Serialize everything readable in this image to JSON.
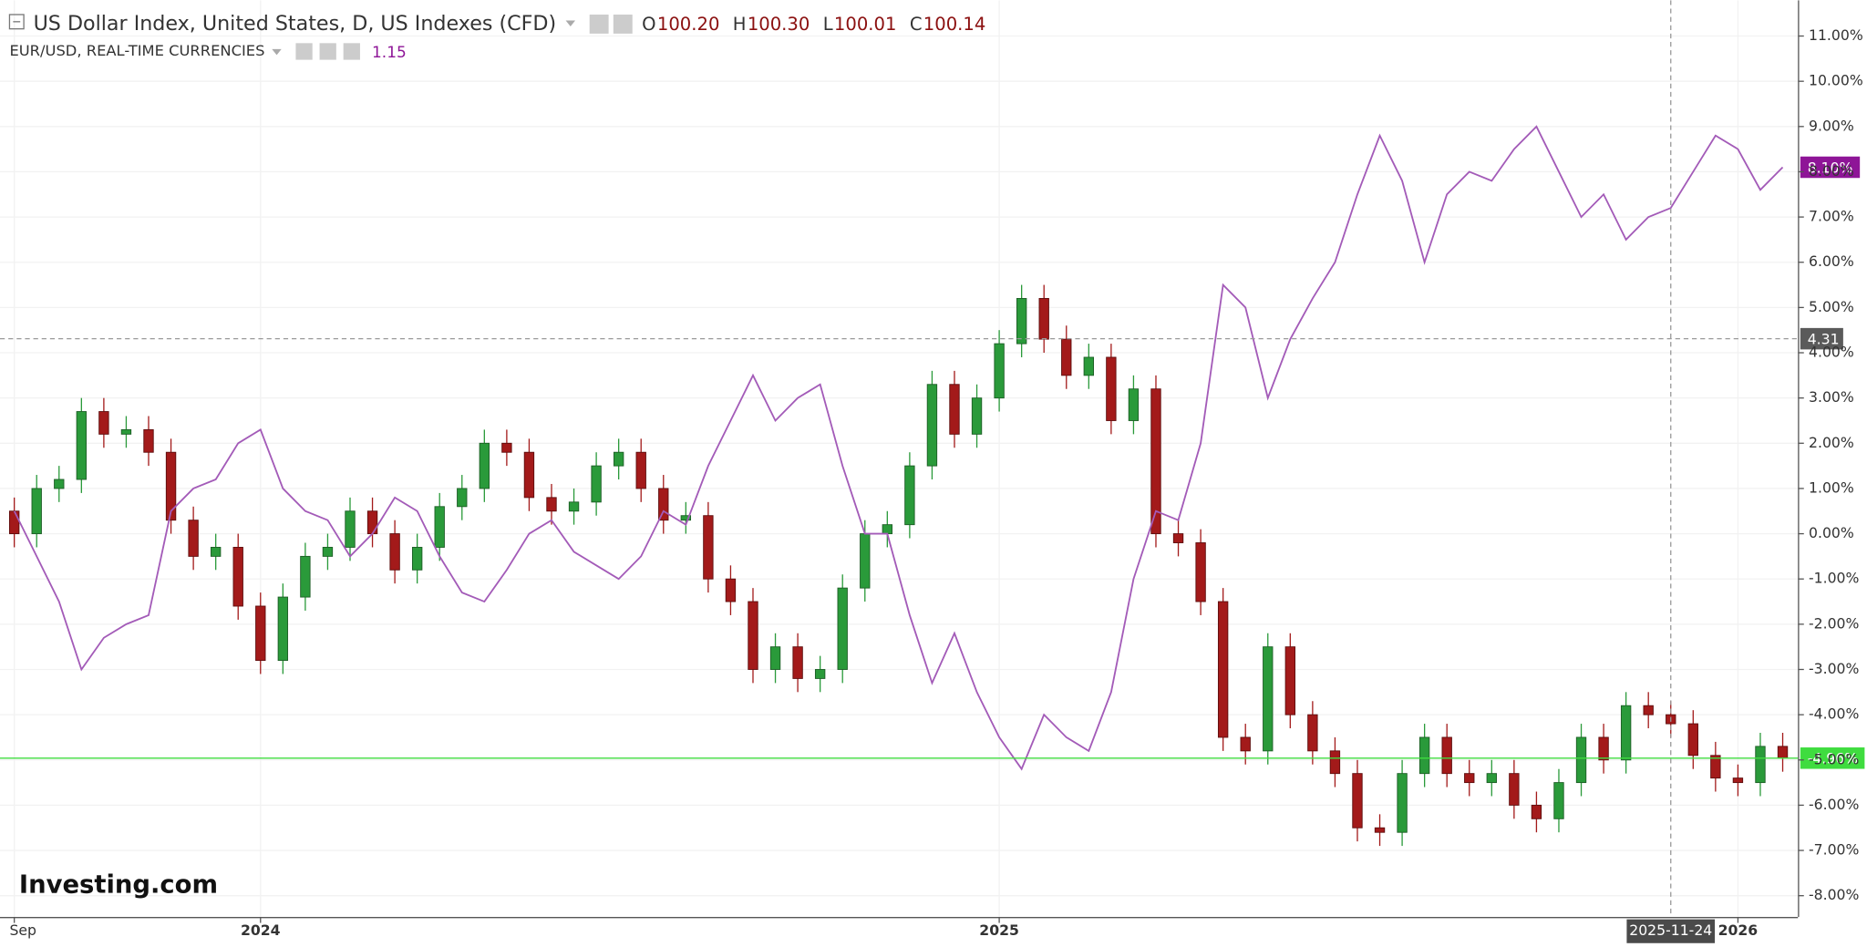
{
  "chart_data": {
    "type": "candlestick",
    "title": "US Dollar Index, United States, D, US Indexes (CFD)",
    "ohlc": [
      [
        "O",
        "100.20"
      ],
      [
        "H",
        "100.30"
      ],
      [
        "L",
        "100.01"
      ],
      [
        "C",
        "100.14"
      ]
    ],
    "logo": "Investing.com",
    "ylim": [
      -8.47,
      11.79
    ],
    "yticks": [
      {
        "value": -8,
        "label": "-8.00%"
      },
      {
        "value": -7,
        "label": "-7.00%"
      },
      {
        "value": -6,
        "label": "-6.00%"
      },
      {
        "value": -5,
        "label": "-5.00%"
      },
      {
        "value": -4,
        "label": "-4.00%"
      },
      {
        "value": -3,
        "label": "-3.00%"
      },
      {
        "value": -2,
        "label": "-2.00%"
      },
      {
        "value": -1,
        "label": "-1.00%"
      },
      {
        "value": 0,
        "label": "0.00%"
      },
      {
        "value": 1,
        "label": "1.00%"
      },
      {
        "value": 2,
        "label": "2.00%"
      },
      {
        "value": 3,
        "label": "3.00%"
      },
      {
        "value": 4,
        "label": "4.00%"
      },
      {
        "value": 5,
        "label": "5.00%"
      },
      {
        "value": 6,
        "label": "6.00%"
      },
      {
        "value": 7,
        "label": "7.00%"
      },
      {
        "value": 8,
        "label": "8.00%"
      },
      {
        "value": 9,
        "label": "9.00%"
      },
      {
        "value": 10,
        "label": "10.00%"
      },
      {
        "value": 11,
        "label": "11.00%"
      }
    ],
    "xticks": [
      {
        "value": 0,
        "label": "Sep"
      },
      {
        "value": 11,
        "label": "2024"
      },
      {
        "value": 44,
        "label": "2025"
      },
      {
        "value": 77,
        "label": "2026"
      }
    ],
    "grid": true,
    "crosshair": {
      "x": {
        "value": 74,
        "label": "2025-11-24"
      },
      "y": 4.31
    },
    "series": [
      {
        "name": "US Dollar Index, United States, D, US Indexes (CFD)",
        "type": "candlestick",
        "color_up": "#2a9a3a",
        "color_down": "#a31a1a",
        "last_color": "#3fdc3f",
        "last_label": "-4.96%",
        "open": [
          0.5,
          0.0,
          1.0,
          1.2,
          2.7,
          2.2,
          2.3,
          1.8,
          0.3,
          -0.5,
          -0.3,
          -1.6,
          -2.8,
          -1.4,
          -0.5,
          -0.3,
          0.5,
          0.0,
          -0.8,
          -0.3,
          0.6,
          1.0,
          2.0,
          1.8,
          0.8,
          0.5,
          0.7,
          1.5,
          1.8,
          1.0,
          0.3,
          0.4,
          -1.0,
          -1.5,
          -3.0,
          -2.5,
          -3.2,
          -3.0,
          -1.2,
          0.0,
          0.2,
          1.5,
          3.3,
          2.2,
          3.0,
          4.2,
          5.2,
          4.3,
          3.5,
          3.9,
          2.5,
          3.2,
          0.0,
          -0.2,
          -1.5,
          -4.5,
          -4.8,
          -2.5,
          -4.0,
          -4.8,
          -5.3,
          -6.5,
          -6.6,
          -5.3,
          -4.5,
          -5.3,
          -5.5,
          -5.3,
          -6.0,
          -6.3,
          -5.5,
          -4.5,
          -5.0,
          -3.8,
          -4.0,
          -4.2,
          -4.9,
          -5.4,
          -5.5,
          -4.7
        ],
        "high": [
          0.8,
          1.3,
          1.5,
          3.0,
          3.0,
          2.6,
          2.6,
          2.1,
          0.6,
          0.0,
          0.0,
          -1.3,
          -1.1,
          -0.2,
          0.0,
          0.8,
          0.8,
          0.3,
          0.0,
          0.9,
          1.3,
          2.3,
          2.3,
          2.1,
          1.1,
          1.0,
          1.8,
          2.1,
          2.1,
          1.3,
          0.7,
          0.7,
          -0.7,
          -1.2,
          -2.2,
          -2.2,
          -2.7,
          -0.9,
          0.3,
          0.5,
          1.8,
          3.6,
          3.6,
          3.3,
          4.5,
          5.5,
          5.5,
          4.6,
          4.2,
          4.2,
          3.5,
          3.5,
          0.3,
          0.1,
          -1.2,
          -4.2,
          -2.2,
          -2.2,
          -3.7,
          -4.5,
          -5.0,
          -6.2,
          -5.0,
          -4.2,
          -4.2,
          -5.0,
          -5.0,
          -5.0,
          -5.7,
          -5.2,
          -4.2,
          -4.2,
          -3.5,
          -3.5,
          -3.7,
          -3.9,
          -4.6,
          -5.1,
          -4.4,
          -4.4
        ],
        "low": [
          -0.3,
          -0.3,
          0.7,
          0.9,
          1.9,
          1.9,
          1.5,
          0.0,
          -0.8,
          -0.8,
          -1.9,
          -3.1,
          -3.1,
          -1.7,
          -0.8,
          -0.6,
          -0.3,
          -1.1,
          -1.1,
          -0.6,
          0.3,
          0.7,
          1.5,
          0.5,
          0.2,
          0.2,
          0.4,
          1.2,
          0.7,
          0.0,
          0.0,
          -1.3,
          -1.8,
          -3.3,
          -3.3,
          -3.5,
          -3.5,
          -3.3,
          -1.5,
          -0.3,
          -0.1,
          1.2,
          1.9,
          1.9,
          2.7,
          3.9,
          4.0,
          3.2,
          3.2,
          2.2,
          2.2,
          -0.3,
          -0.5,
          -1.8,
          -4.8,
          -5.1,
          -5.1,
          -4.3,
          -5.1,
          -5.6,
          -6.8,
          -6.9,
          -6.9,
          -5.6,
          -5.6,
          -5.8,
          -5.8,
          -6.3,
          -6.6,
          -6.6,
          -5.8,
          -5.3,
          -5.3,
          -4.3,
          -4.5,
          -5.2,
          -5.7,
          -5.8,
          -5.8,
          -5.26
        ],
        "close": [
          0.0,
          1.0,
          1.2,
          2.7,
          2.2,
          2.3,
          1.8,
          0.3,
          -0.5,
          -0.3,
          -1.6,
          -2.8,
          -1.4,
          -0.5,
          -0.3,
          0.5,
          0.0,
          -0.8,
          -0.3,
          0.6,
          1.0,
          2.0,
          1.8,
          0.8,
          0.5,
          0.7,
          1.5,
          1.8,
          1.0,
          0.3,
          0.4,
          -1.0,
          -1.5,
          -3.0,
          -2.5,
          -3.2,
          -3.0,
          -1.2,
          0.0,
          0.2,
          1.5,
          3.3,
          2.2,
          3.0,
          4.2,
          5.2,
          4.3,
          3.5,
          3.9,
          2.5,
          3.2,
          0.0,
          -0.2,
          -1.5,
          -4.5,
          -4.8,
          -2.5,
          -4.0,
          -4.8,
          -5.3,
          -6.5,
          -6.6,
          -5.3,
          -4.5,
          -5.3,
          -5.5,
          -5.3,
          -6.0,
          -6.3,
          -5.5,
          -4.5,
          -5.0,
          -3.8,
          -4.0,
          -4.2,
          -4.9,
          -5.4,
          -5.5,
          -4.7,
          -4.96
        ]
      },
      {
        "name": "EUR/USD, REAL-TIME CURRENCIES",
        "type": "line",
        "color": "#a35bb8",
        "last": 1.15,
        "last_label": "8.10%",
        "label_color": "#8e1597",
        "values": [
          0.5,
          -0.5,
          -1.5,
          -3.0,
          -2.3,
          -2.0,
          -1.8,
          0.5,
          1.0,
          1.2,
          2.0,
          2.3,
          1.0,
          0.5,
          0.3,
          -0.5,
          0.0,
          0.8,
          0.5,
          -0.5,
          -1.3,
          -1.5,
          -0.8,
          0.0,
          0.3,
          -0.4,
          -0.7,
          -1.0,
          -0.5,
          0.5,
          0.2,
          1.5,
          2.5,
          3.5,
          2.5,
          3.0,
          3.3,
          1.5,
          0.0,
          0.0,
          -1.8,
          -3.3,
          -2.2,
          -3.5,
          -4.5,
          -5.2,
          -4.0,
          -4.5,
          -4.8,
          -3.5,
          -1.0,
          0.5,
          0.3,
          2.0,
          5.5,
          5.0,
          3.0,
          4.3,
          5.2,
          6.0,
          7.5,
          8.8,
          7.8,
          6.0,
          7.5,
          8.0,
          7.8,
          8.5,
          9.0,
          8.0,
          7.0,
          7.5,
          6.5,
          7.0,
          7.2,
          8.0,
          8.8,
          8.5,
          7.6,
          8.1
        ]
      }
    ]
  }
}
